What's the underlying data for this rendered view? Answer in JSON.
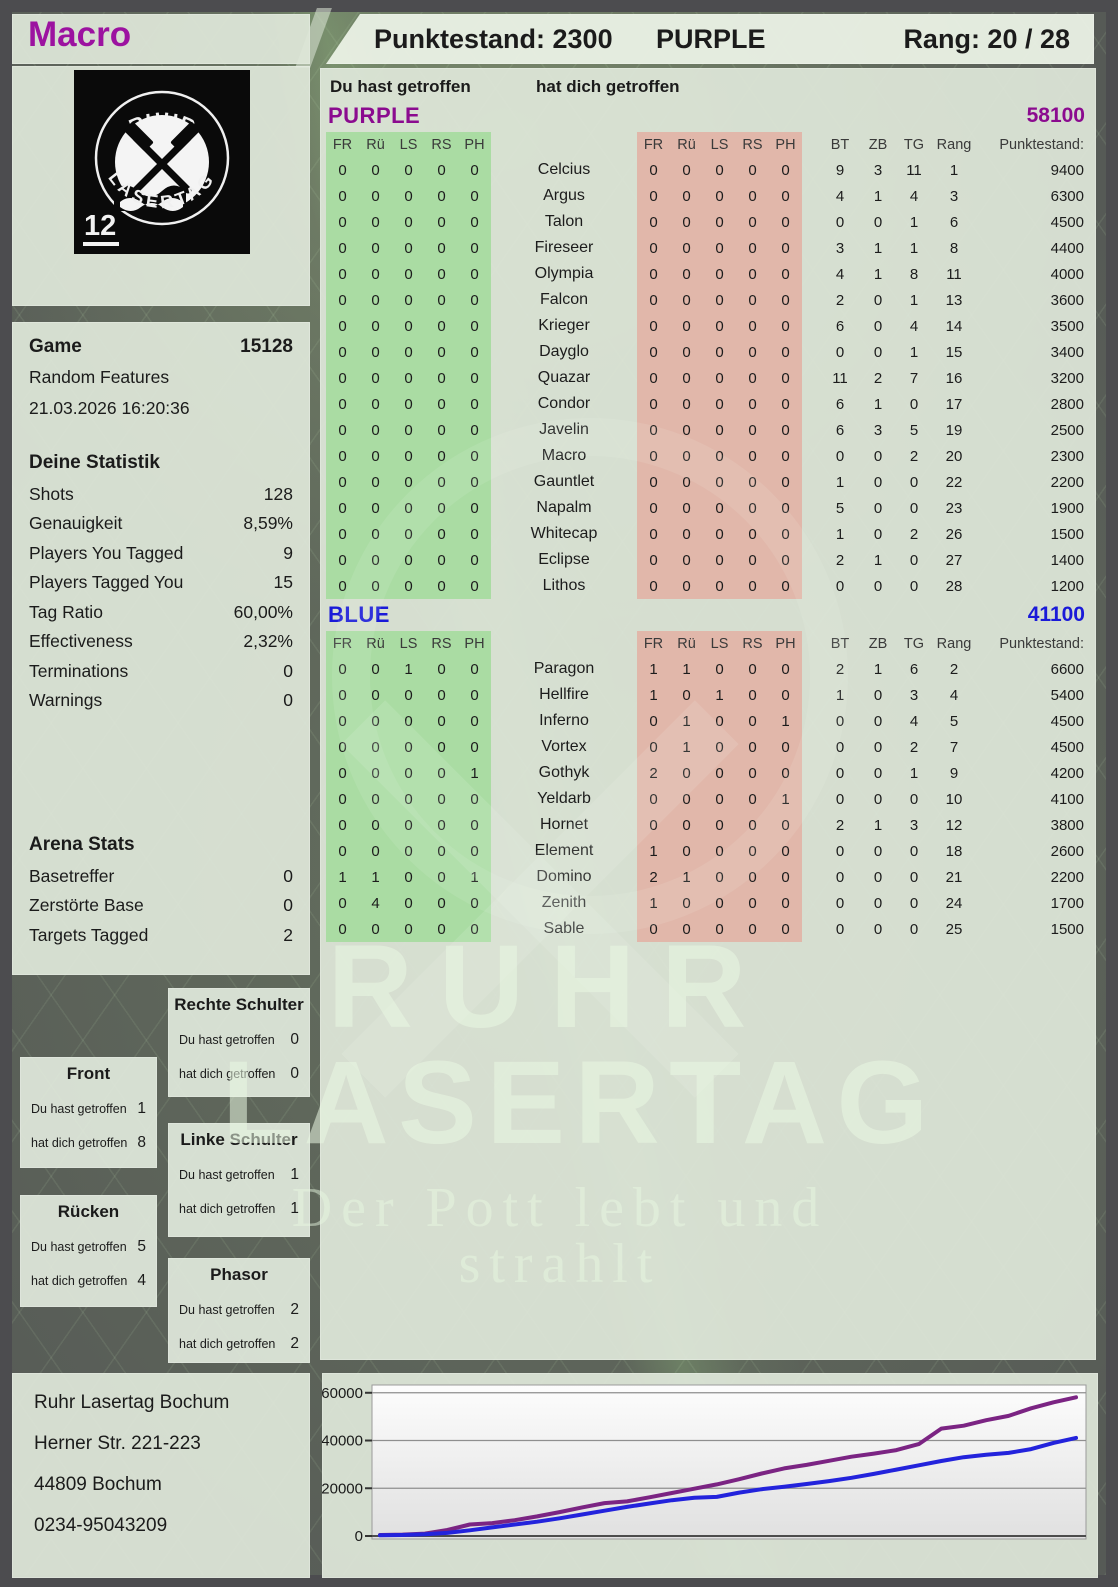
{
  "header": {
    "player": "Macro",
    "score": "Punktestand: 2300",
    "team": "PURPLE",
    "rank": "Rang: 20 / 28"
  },
  "logo": {
    "arc_top": "RUHR",
    "arc_bottom": "LASERTAG",
    "pack_number": "12"
  },
  "game": {
    "label": "Game",
    "number": "15128",
    "mode": "Random Features",
    "datetime": "21.03.2026 16:20:36"
  },
  "your_stats": {
    "title": "Deine Statistik",
    "rows": [
      {
        "label": "Shots",
        "value": "128"
      },
      {
        "label": "Genauigkeit",
        "value": "8,59%"
      },
      {
        "label": "Players You Tagged",
        "value": "9"
      },
      {
        "label": "Players Tagged You",
        "value": "15"
      },
      {
        "label": "Tag Ratio",
        "value": "60,00%"
      },
      {
        "label": "Effectiveness",
        "value": "2,32%"
      },
      {
        "label": "Terminations",
        "value": "0"
      },
      {
        "label": "Warnings",
        "value": "0"
      }
    ]
  },
  "arena_stats": {
    "title": "Arena Stats",
    "rows": [
      {
        "label": "Basetreffer",
        "value": "0"
      },
      {
        "label": "Zerstörte Base",
        "value": "0"
      },
      {
        "label": "Targets Tagged",
        "value": "2"
      }
    ]
  },
  "zones": {
    "you_hit_label": "Du hast getroffen",
    "hit_you_label": "hat dich getroffen",
    "boxes": [
      {
        "name": "Front",
        "you_hit": "1",
        "hit_you": "8"
      },
      {
        "name": "Rücken",
        "you_hit": "5",
        "hit_you": "4"
      },
      {
        "name": "Rechte Schulter",
        "you_hit": "0",
        "hit_you": "0"
      },
      {
        "name": "Linke Schulter",
        "you_hit": "1",
        "hit_you": "1"
      },
      {
        "name": "Phasor",
        "you_hit": "2",
        "hit_you": "2"
      }
    ]
  },
  "score_table": {
    "you_hit_header": "Du hast getroffen",
    "hit_you_header": "hat dich getroffen",
    "hit_columns": [
      "FR",
      "Rü",
      "LS",
      "RS",
      "PH"
    ],
    "stat_columns": [
      "BT",
      "ZB",
      "TG",
      "Rang",
      "Punktestand:"
    ],
    "teams": [
      {
        "name": "PURPLE",
        "color": "#8b0b8f",
        "total": "58100",
        "players": [
          {
            "name": "Celcius",
            "you_hit": [
              "0",
              "0",
              "0",
              "0",
              "0"
            ],
            "hit_you": [
              "0",
              "0",
              "0",
              "0",
              "0"
            ],
            "bt": "9",
            "zb": "3",
            "tg": "11",
            "rang": "1",
            "score": "9400"
          },
          {
            "name": "Argus",
            "you_hit": [
              "0",
              "0",
              "0",
              "0",
              "0"
            ],
            "hit_you": [
              "0",
              "0",
              "0",
              "0",
              "0"
            ],
            "bt": "4",
            "zb": "1",
            "tg": "4",
            "rang": "3",
            "score": "6300"
          },
          {
            "name": "Talon",
            "you_hit": [
              "0",
              "0",
              "0",
              "0",
              "0"
            ],
            "hit_you": [
              "0",
              "0",
              "0",
              "0",
              "0"
            ],
            "bt": "0",
            "zb": "0",
            "tg": "1",
            "rang": "6",
            "score": "4500"
          },
          {
            "name": "Fireseer",
            "you_hit": [
              "0",
              "0",
              "0",
              "0",
              "0"
            ],
            "hit_you": [
              "0",
              "0",
              "0",
              "0",
              "0"
            ],
            "bt": "3",
            "zb": "1",
            "tg": "1",
            "rang": "8",
            "score": "4400"
          },
          {
            "name": "Olympia",
            "you_hit": [
              "0",
              "0",
              "0",
              "0",
              "0"
            ],
            "hit_you": [
              "0",
              "0",
              "0",
              "0",
              "0"
            ],
            "bt": "4",
            "zb": "1",
            "tg": "8",
            "rang": "11",
            "score": "4000"
          },
          {
            "name": "Falcon",
            "you_hit": [
              "0",
              "0",
              "0",
              "0",
              "0"
            ],
            "hit_you": [
              "0",
              "0",
              "0",
              "0",
              "0"
            ],
            "bt": "2",
            "zb": "0",
            "tg": "1",
            "rang": "13",
            "score": "3600"
          },
          {
            "name": "Krieger",
            "you_hit": [
              "0",
              "0",
              "0",
              "0",
              "0"
            ],
            "hit_you": [
              "0",
              "0",
              "0",
              "0",
              "0"
            ],
            "bt": "6",
            "zb": "0",
            "tg": "4",
            "rang": "14",
            "score": "3500"
          },
          {
            "name": "Dayglo",
            "you_hit": [
              "0",
              "0",
              "0",
              "0",
              "0"
            ],
            "hit_you": [
              "0",
              "0",
              "0",
              "0",
              "0"
            ],
            "bt": "0",
            "zb": "0",
            "tg": "1",
            "rang": "15",
            "score": "3400"
          },
          {
            "name": "Quazar",
            "you_hit": [
              "0",
              "0",
              "0",
              "0",
              "0"
            ],
            "hit_you": [
              "0",
              "0",
              "0",
              "0",
              "0"
            ],
            "bt": "11",
            "zb": "2",
            "tg": "7",
            "rang": "16",
            "score": "3200"
          },
          {
            "name": "Condor",
            "you_hit": [
              "0",
              "0",
              "0",
              "0",
              "0"
            ],
            "hit_you": [
              "0",
              "0",
              "0",
              "0",
              "0"
            ],
            "bt": "6",
            "zb": "1",
            "tg": "0",
            "rang": "17",
            "score": "2800"
          },
          {
            "name": "Javelin",
            "you_hit": [
              "0",
              "0",
              "0",
              "0",
              "0"
            ],
            "hit_you": [
              "0",
              "0",
              "0",
              "0",
              "0"
            ],
            "bt": "6",
            "zb": "3",
            "tg": "5",
            "rang": "19",
            "score": "2500"
          },
          {
            "name": "Macro",
            "you_hit": [
              "0",
              "0",
              "0",
              "0",
              "0"
            ],
            "hit_you": [
              "0",
              "0",
              "0",
              "0",
              "0"
            ],
            "bt": "0",
            "zb": "0",
            "tg": "2",
            "rang": "20",
            "score": "2300"
          },
          {
            "name": "Gauntlet",
            "you_hit": [
              "0",
              "0",
              "0",
              "0",
              "0"
            ],
            "hit_you": [
              "0",
              "0",
              "0",
              "0",
              "0"
            ],
            "bt": "1",
            "zb": "0",
            "tg": "0",
            "rang": "22",
            "score": "2200"
          },
          {
            "name": "Napalm",
            "you_hit": [
              "0",
              "0",
              "0",
              "0",
              "0"
            ],
            "hit_you": [
              "0",
              "0",
              "0",
              "0",
              "0"
            ],
            "bt": "5",
            "zb": "0",
            "tg": "0",
            "rang": "23",
            "score": "1900"
          },
          {
            "name": "Whitecap",
            "you_hit": [
              "0",
              "0",
              "0",
              "0",
              "0"
            ],
            "hit_you": [
              "0",
              "0",
              "0",
              "0",
              "0"
            ],
            "bt": "1",
            "zb": "0",
            "tg": "2",
            "rang": "26",
            "score": "1500"
          },
          {
            "name": "Eclipse",
            "you_hit": [
              "0",
              "0",
              "0",
              "0",
              "0"
            ],
            "hit_you": [
              "0",
              "0",
              "0",
              "0",
              "0"
            ],
            "bt": "2",
            "zb": "1",
            "tg": "0",
            "rang": "27",
            "score": "1400"
          },
          {
            "name": "Lithos",
            "you_hit": [
              "0",
              "0",
              "0",
              "0",
              "0"
            ],
            "hit_you": [
              "0",
              "0",
              "0",
              "0",
              "0"
            ],
            "bt": "0",
            "zb": "0",
            "tg": "0",
            "rang": "28",
            "score": "1200"
          }
        ]
      },
      {
        "name": "BLUE",
        "color": "#1a1ad8",
        "total": "41100",
        "players": [
          {
            "name": "Paragon",
            "you_hit": [
              "0",
              "0",
              "1",
              "0",
              "0"
            ],
            "hit_you": [
              "1",
              "1",
              "0",
              "0",
              "0"
            ],
            "bt": "2",
            "zb": "1",
            "tg": "6",
            "rang": "2",
            "score": "6600"
          },
          {
            "name": "Hellfire",
            "you_hit": [
              "0",
              "0",
              "0",
              "0",
              "0"
            ],
            "hit_you": [
              "1",
              "0",
              "1",
              "0",
              "0"
            ],
            "bt": "1",
            "zb": "0",
            "tg": "3",
            "rang": "4",
            "score": "5400"
          },
          {
            "name": "Inferno",
            "you_hit": [
              "0",
              "0",
              "0",
              "0",
              "0"
            ],
            "hit_you": [
              "0",
              "1",
              "0",
              "0",
              "1"
            ],
            "bt": "0",
            "zb": "0",
            "tg": "4",
            "rang": "5",
            "score": "4500"
          },
          {
            "name": "Vortex",
            "you_hit": [
              "0",
              "0",
              "0",
              "0",
              "0"
            ],
            "hit_you": [
              "0",
              "1",
              "0",
              "0",
              "0"
            ],
            "bt": "0",
            "zb": "0",
            "tg": "2",
            "rang": "7",
            "score": "4500"
          },
          {
            "name": "Gothyk",
            "you_hit": [
              "0",
              "0",
              "0",
              "0",
              "1"
            ],
            "hit_you": [
              "2",
              "0",
              "0",
              "0",
              "0"
            ],
            "bt": "0",
            "zb": "0",
            "tg": "1",
            "rang": "9",
            "score": "4200"
          },
          {
            "name": "Yeldarb",
            "you_hit": [
              "0",
              "0",
              "0",
              "0",
              "0"
            ],
            "hit_you": [
              "0",
              "0",
              "0",
              "0",
              "1"
            ],
            "bt": "0",
            "zb": "0",
            "tg": "0",
            "rang": "10",
            "score": "4100"
          },
          {
            "name": "Hornet",
            "you_hit": [
              "0",
              "0",
              "0",
              "0",
              "0"
            ],
            "hit_you": [
              "0",
              "0",
              "0",
              "0",
              "0"
            ],
            "bt": "2",
            "zb": "1",
            "tg": "3",
            "rang": "12",
            "score": "3800"
          },
          {
            "name": "Element",
            "you_hit": [
              "0",
              "0",
              "0",
              "0",
              "0"
            ],
            "hit_you": [
              "1",
              "0",
              "0",
              "0",
              "0"
            ],
            "bt": "0",
            "zb": "0",
            "tg": "0",
            "rang": "18",
            "score": "2600"
          },
          {
            "name": "Domino",
            "you_hit": [
              "1",
              "1",
              "0",
              "0",
              "1"
            ],
            "hit_you": [
              "2",
              "1",
              "0",
              "0",
              "0"
            ],
            "bt": "0",
            "zb": "0",
            "tg": "0",
            "rang": "21",
            "score": "2200"
          },
          {
            "name": "Zenith",
            "you_hit": [
              "0",
              "4",
              "0",
              "0",
              "0"
            ],
            "hit_you": [
              "1",
              "0",
              "0",
              "0",
              "0"
            ],
            "bt": "0",
            "zb": "0",
            "tg": "0",
            "rang": "24",
            "score": "1700"
          },
          {
            "name": "Sable",
            "you_hit": [
              "0",
              "0",
              "0",
              "0",
              "0"
            ],
            "hit_you": [
              "0",
              "0",
              "0",
              "0",
              "0"
            ],
            "bt": "0",
            "zb": "0",
            "tg": "0",
            "rang": "25",
            "score": "1500"
          }
        ]
      }
    ]
  },
  "watermark": {
    "line1": "RUHR",
    "line2": "LASERTAG",
    "line3": "Der Pott lebt und strahlt"
  },
  "footer": {
    "address": [
      "Ruhr Lasertag Bochum",
      "Herner Str. 221-223",
      "44809 Bochum",
      "0234-95043209"
    ]
  },
  "chart_data": {
    "type": "line",
    "title": "",
    "xlabel": "",
    "ylabel": "",
    "ylim": [
      0,
      62000
    ],
    "yticks": [
      0,
      20000,
      40000,
      60000
    ],
    "grid": true,
    "legend": "none",
    "series": [
      {
        "name": "PURPLE",
        "color": "#7b2483",
        "values": [
          400,
          600,
          1000,
          2500,
          4800,
          5400,
          6600,
          8200,
          10000,
          12000,
          13800,
          14500,
          16200,
          18000,
          19800,
          21600,
          23800,
          26200,
          28300,
          29800,
          31500,
          33200,
          34500,
          36000,
          38500,
          45000,
          46200,
          48500,
          50300,
          53500,
          56000,
          58100
        ]
      },
      {
        "name": "BLUE",
        "color": "#2323dc",
        "values": [
          300,
          400,
          700,
          1300,
          2400,
          3600,
          4800,
          6000,
          7400,
          9000,
          10600,
          12200,
          13600,
          15000,
          16000,
          16400,
          18200,
          19600,
          20600,
          21800,
          23000,
          24400,
          26000,
          27800,
          29600,
          31400,
          33000,
          34000,
          34800,
          36400,
          39000,
          41100
        ]
      }
    ]
  }
}
